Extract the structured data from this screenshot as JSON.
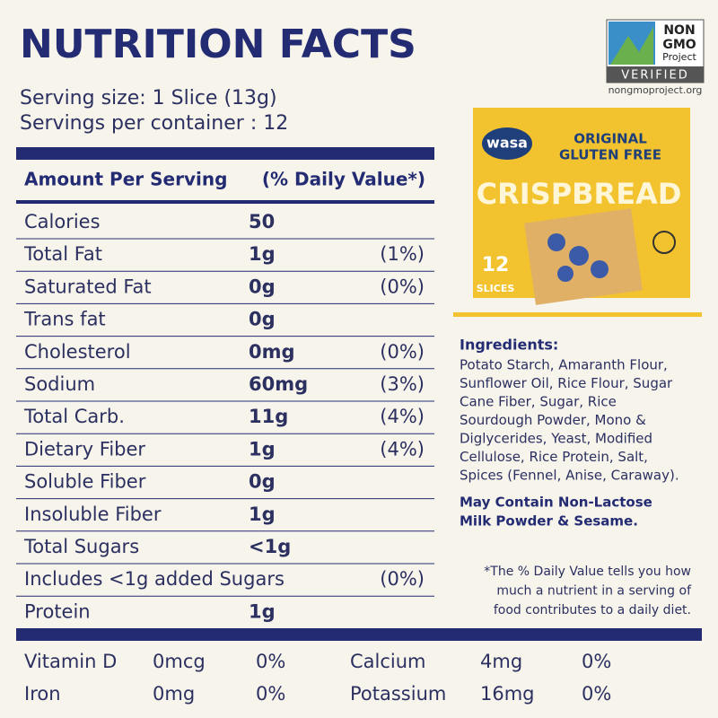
{
  "header": {
    "title": "NUTRITION FACTS",
    "serving_size": "Serving size: 1 Slice (13g)",
    "servings_per_container": "Servings per container : 12"
  },
  "logo": {
    "non": "NON",
    "gmo": "GMO",
    "project": "Project",
    "verified": "VERIFIED",
    "url": "nongmoproject.org"
  },
  "product": {
    "brand": "wasa",
    "line1": "ORIGINAL",
    "line2": "GLUTEN FREE",
    "name": "CRISPBREAD",
    "count": "12",
    "unit": "SLICES"
  },
  "table": {
    "header": [
      "Amount Per Serving",
      "(% Daily Value*)"
    ],
    "rows": [
      [
        "Calories",
        "50"
      ],
      [
        "Total Fat",
        "1g",
        "(1%)"
      ],
      [
        "Saturated Fat",
        "0g",
        "(0%)"
      ],
      [
        "Trans fat",
        "0g"
      ],
      [
        "Cholesterol",
        "0mg",
        "(0%)"
      ],
      [
        "Sodium",
        "60mg",
        "(3%)"
      ],
      [
        "Total Carb.",
        "11g",
        "(4%)"
      ],
      [
        "Dietary Fiber",
        "1g",
        "(4%)"
      ],
      [
        "Soluble Fiber",
        "0g"
      ],
      [
        "Insoluble Fiber",
        "1g"
      ],
      [
        "Total Sugars",
        "<1g"
      ],
      [
        "Includes <1g added Sugars",
        "",
        "(0%)"
      ],
      [
        "Protein",
        "1g"
      ]
    ]
  },
  "vitamins": [
    [
      "Vitamin D",
      "0mcg",
      "0%",
      "Calcium",
      "4mg",
      "0%"
    ],
    [
      "Iron",
      "0mg",
      "0%",
      "Potassium",
      "16mg",
      "0%"
    ]
  ],
  "ingredients": {
    "label": "Ingredients:",
    "lines": [
      "Potato Starch, Amaranth Flour,",
      "Sunflower Oil, Rice Flour, Sugar",
      "Cane Fiber, Sugar, Rice",
      "Sourdough Powder, Mono &",
      "Diglycerides, Yeast, Modified",
      "Cellulose, Rice Protein, Salt,",
      "Spices (Fennel, Anise, Caraway)."
    ]
  },
  "allergen": [
    "May Contain Non-Lactose",
    "Milk Powder & Sesame."
  ],
  "footnote": [
    "*The % Daily Value tells you how",
    "much a nutrient in a serving of",
    "food contributes to a daily diet."
  ]
}
